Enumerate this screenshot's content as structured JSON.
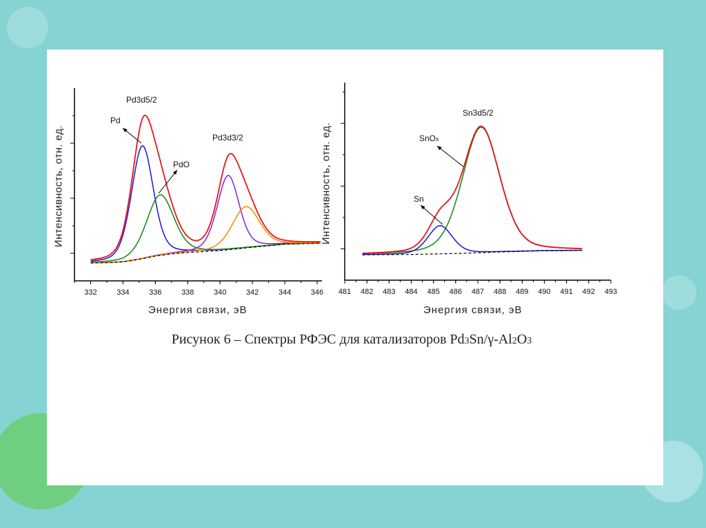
{
  "caption": {
    "prefix": "Рисунок 6 – Спектры РФЭС для катализаторов Pd",
    "sub1": "3",
    "mid": "Sn/γ-Al",
    "sub2": "2",
    "o": "O",
    "sub3": "3"
  },
  "colors": {
    "background": "#86d3d3",
    "panel": "#ffffff",
    "total": "#e8141c",
    "blue": "#1f1fe0",
    "green": "#1c8a1c",
    "purple": "#8a2be2",
    "orange": "#ff8c00",
    "baseline": "#000000"
  },
  "chart_data": [
    {
      "type": "line",
      "title": "",
      "xlabel": "Энергия связи, эВ",
      "ylabel": "Интенсивность, отн. ед.",
      "xlim": [
        331,
        346.3
      ],
      "ylim": [
        0,
        7
      ],
      "x_ticks": [
        332,
        334,
        336,
        338,
        340,
        342,
        344,
        346
      ],
      "x_tick_labels": [
        "332",
        "334",
        "336",
        "338",
        "340",
        "342",
        "344",
        "346"
      ],
      "y_major_ticks": [
        1,
        3,
        5
      ],
      "y_minor_ticks": [
        2,
        4,
        6
      ],
      "x_range": [
        332,
        346.2
      ],
      "background": {
        "x": [
          332,
          333,
          334,
          335,
          336,
          337,
          338,
          340,
          342,
          344,
          346.2
        ],
        "y": [
          0.65,
          0.66,
          0.69,
          0.78,
          0.9,
          0.98,
          1.03,
          1.1,
          1.22,
          1.33,
          1.37
        ]
      },
      "components": [
        {
          "name": "Pd",
          "color": "blue",
          "center": 335.2,
          "amplitude": 4.1,
          "hwhm": 0.8,
          "eta": 0.3
        },
        {
          "name": "PdO",
          "color": "green",
          "center": 336.3,
          "amplitude": 2.2,
          "hwhm": 1.0,
          "eta": 0.3
        },
        {
          "name": "Pd3d3/2 Pd",
          "color": "purple",
          "center": 340.5,
          "amplitude": 2.7,
          "hwhm": 0.8,
          "eta": 0.3
        },
        {
          "name": "Pd3d3/2 PdO",
          "color": "orange",
          "center": 341.6,
          "amplitude": 1.5,
          "hwhm": 1.0,
          "eta": 0.3
        }
      ],
      "annotations": {
        "peak1": "Pd3d5/2",
        "peak2": "Pd3d3/2",
        "pd": "Pd",
        "pdo": "PdO"
      }
    },
    {
      "type": "line",
      "title": "",
      "xlabel": "Энергия связи, эВ",
      "ylabel": "Интенсивность, отн. ед.",
      "xlim": [
        481,
        493
      ],
      "ylim": [
        0,
        6.3
      ],
      "x_ticks": [
        481,
        482,
        483,
        484,
        485,
        486,
        487,
        488,
        489,
        490,
        491,
        492,
        493
      ],
      "x_tick_labels": [
        "481",
        "482",
        "483",
        "484",
        "485",
        "486",
        "487",
        "488",
        "489",
        "490",
        "491",
        "492",
        "493"
      ],
      "y_major_ticks": [
        1,
        3,
        5
      ],
      "y_minor_ticks": [
        2,
        4,
        6
      ],
      "x_range": [
        481.8,
        491.7
      ],
      "background": {
        "x": [
          481.8,
          484,
          486,
          488,
          490,
          491.7
        ],
        "y": [
          0.81,
          0.82,
          0.85,
          0.9,
          0.94,
          0.95
        ]
      },
      "components": [
        {
          "name": "SnOx",
          "color": "green",
          "center": 487.15,
          "amplitude": 4.0,
          "hwhm": 1.0,
          "eta": 0.3
        },
        {
          "name": "Sn",
          "color": "blue",
          "center": 485.3,
          "amplitude": 0.9,
          "hwhm": 0.65,
          "eta": 0.3
        }
      ],
      "annotations": {
        "peak1": "Sn3d5/2",
        "snox": "SnO",
        "snox_sub": "x",
        "sn": "Sn"
      }
    }
  ]
}
